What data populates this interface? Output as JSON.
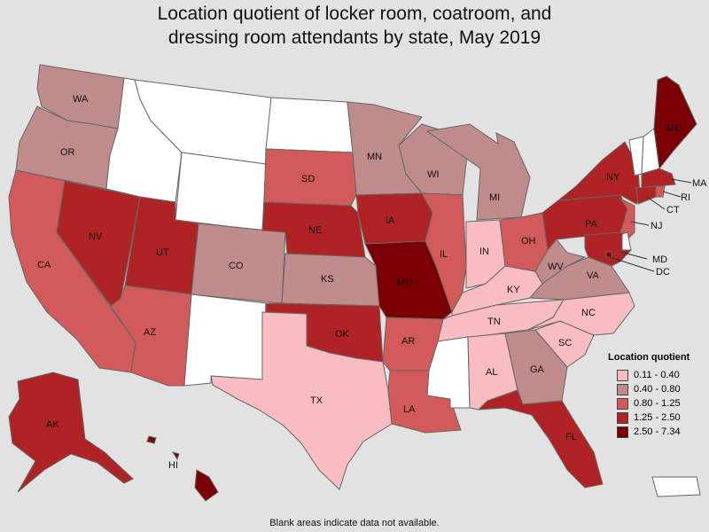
{
  "title_line1": "Location quotient of locker room, coatroom, and",
  "title_line2": "dressing room attendants by state, May 2019",
  "legend": {
    "title": "Location quotient",
    "items": [
      {
        "label": "0.11 - 0.40",
        "color": "#f9bcc1"
      },
      {
        "label": "0.40 - 0.80",
        "color": "#bf8c8b"
      },
      {
        "label": "0.80 - 1.25",
        "color": "#d35a5a"
      },
      {
        "label": "1.25 - 2.50",
        "color": "#b02324"
      },
      {
        "label": "2.50 - 7.34",
        "color": "#7b0006"
      }
    ]
  },
  "no_data_color": "#ffffff",
  "footnote": "Blank areas indicate data not available.",
  "states": [
    {
      "abbr": "WA",
      "class": 1
    },
    {
      "abbr": "OR",
      "class": 1
    },
    {
      "abbr": "CA",
      "class": 2
    },
    {
      "abbr": "NV",
      "class": 3
    },
    {
      "abbr": "ID",
      "class": null
    },
    {
      "abbr": "MT",
      "class": null
    },
    {
      "abbr": "WY",
      "class": null
    },
    {
      "abbr": "UT",
      "class": 3
    },
    {
      "abbr": "AZ",
      "class": 2
    },
    {
      "abbr": "CO",
      "class": 1
    },
    {
      "abbr": "NM",
      "class": null
    },
    {
      "abbr": "ND",
      "class": null
    },
    {
      "abbr": "SD",
      "class": 2
    },
    {
      "abbr": "NE",
      "class": 3
    },
    {
      "abbr": "KS",
      "class": 1
    },
    {
      "abbr": "OK",
      "class": 3
    },
    {
      "abbr": "TX",
      "class": 0
    },
    {
      "abbr": "MN",
      "class": 1
    },
    {
      "abbr": "IA",
      "class": 3
    },
    {
      "abbr": "MO",
      "class": 4
    },
    {
      "abbr": "AR",
      "class": 2
    },
    {
      "abbr": "LA",
      "class": 2
    },
    {
      "abbr": "WI",
      "class": 1
    },
    {
      "abbr": "IL",
      "class": 2
    },
    {
      "abbr": "MI",
      "class": 1
    },
    {
      "abbr": "IN",
      "class": 0
    },
    {
      "abbr": "OH",
      "class": 2
    },
    {
      "abbr": "KY",
      "class": 0
    },
    {
      "abbr": "TN",
      "class": 0
    },
    {
      "abbr": "MS",
      "class": null
    },
    {
      "abbr": "AL",
      "class": 0
    },
    {
      "abbr": "GA",
      "class": 1
    },
    {
      "abbr": "FL",
      "class": 3
    },
    {
      "abbr": "SC",
      "class": 0
    },
    {
      "abbr": "NC",
      "class": 0
    },
    {
      "abbr": "VA",
      "class": 1
    },
    {
      "abbr": "WV",
      "class": 1
    },
    {
      "abbr": "PA",
      "class": 3
    },
    {
      "abbr": "NY",
      "class": 3
    },
    {
      "abbr": "VT",
      "class": null
    },
    {
      "abbr": "NH",
      "class": null
    },
    {
      "abbr": "ME",
      "class": 4
    },
    {
      "abbr": "MA",
      "class": 3
    },
    {
      "abbr": "RI",
      "class": 2
    },
    {
      "abbr": "CT",
      "class": 3
    },
    {
      "abbr": "NJ",
      "class": 2
    },
    {
      "abbr": "DE",
      "class": null
    },
    {
      "abbr": "MD",
      "class": 3
    },
    {
      "abbr": "DC",
      "class": 4
    },
    {
      "abbr": "AK",
      "class": 3
    },
    {
      "abbr": "HI",
      "class": 4
    },
    {
      "abbr": "PR",
      "class": null
    }
  ]
}
